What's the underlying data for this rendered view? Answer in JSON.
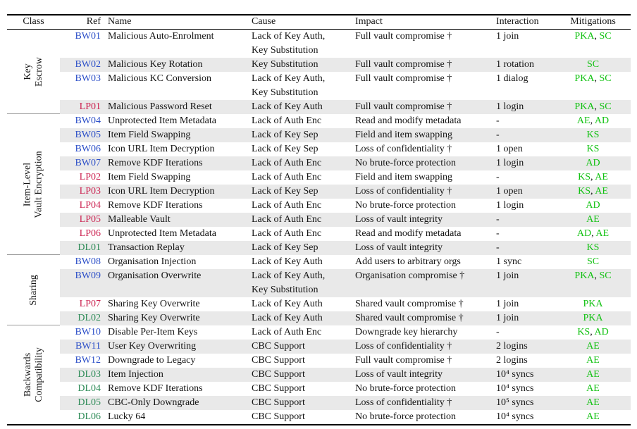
{
  "table": {
    "columns": [
      "Class",
      "Ref",
      "Name",
      "Cause",
      "Impact",
      "Interaction",
      "Mitigations"
    ],
    "ref_colors": {
      "BW": "#2d50c8",
      "LP": "#cc2452",
      "DL": "#2e8b57"
    },
    "mitigation_color": "#12c212",
    "stripe_color": "#e9e9e9",
    "separator": ", ",
    "groups": [
      {
        "class_label": "Key Escrow",
        "class_label_lines": [
          "Key",
          "Escrow"
        ],
        "rows": [
          {
            "ref": "BW01",
            "name": "Malicious Auto-Enrolment",
            "cause": [
              "Lack of Key Auth,",
              "Key Substitution"
            ],
            "impact": "Full vault compromise †",
            "interaction": "1 join",
            "mitigations": [
              "PKA",
              "SC"
            ],
            "shaded": false
          },
          {
            "ref": "BW02",
            "name": "Malicious Key Rotation",
            "cause": [
              "Key Substitution"
            ],
            "impact": "Full vault compromise †",
            "interaction": "1 rotation",
            "mitigations": [
              "SC"
            ],
            "shaded": true
          },
          {
            "ref": "BW03",
            "name": "Malicious KC Conversion",
            "cause": [
              "Lack of Key Auth,",
              "Key Substitution"
            ],
            "impact": "Full vault compromise †",
            "interaction": "1 dialog",
            "mitigations": [
              "PKA",
              "SC"
            ],
            "shaded": false
          },
          {
            "ref": "LP01",
            "name": "Malicious Password Reset",
            "cause": [
              "Lack of Key Auth"
            ],
            "impact": "Full vault compromise †",
            "interaction": "1 login",
            "mitigations": [
              "PKA",
              "SC"
            ],
            "shaded": true
          }
        ]
      },
      {
        "class_label": "Item-Level Vault Encryption",
        "class_label_lines": [
          "Item-Level",
          "Vault Encryption"
        ],
        "rows": [
          {
            "ref": "BW04",
            "name": "Unprotected Item Metadata",
            "cause": [
              "Lack of Auth Enc"
            ],
            "impact": "Read and modify metadata",
            "interaction": "-",
            "mitigations": [
              "AE",
              "AD"
            ],
            "shaded": false
          },
          {
            "ref": "BW05",
            "name": "Item Field Swapping",
            "cause": [
              "Lack of Key Sep"
            ],
            "impact": "Field and item swapping",
            "interaction": "-",
            "mitigations": [
              "KS"
            ],
            "shaded": true
          },
          {
            "ref": "BW06",
            "name": "Icon URL Item Decryption",
            "cause": [
              "Lack of Key Sep"
            ],
            "impact": "Loss of confidentiality †",
            "interaction": "1 open",
            "mitigations": [
              "KS"
            ],
            "shaded": false
          },
          {
            "ref": "BW07",
            "name": "Remove KDF Iterations",
            "cause": [
              "Lack of Auth Enc"
            ],
            "impact": "No brute-force protection",
            "interaction": "1 login",
            "mitigations": [
              "AD"
            ],
            "shaded": true
          },
          {
            "ref": "LP02",
            "name": "Item Field Swapping",
            "cause": [
              "Lack of Auth Enc"
            ],
            "impact": "Field and item swapping",
            "interaction": "-",
            "mitigations": [
              "KS",
              "AE"
            ],
            "shaded": false
          },
          {
            "ref": "LP03",
            "name": "Icon URL Item Decryption",
            "cause": [
              "Lack of Key Sep"
            ],
            "impact": "Loss of confidentiality †",
            "interaction": "1 open",
            "mitigations": [
              "KS",
              "AE"
            ],
            "shaded": true
          },
          {
            "ref": "LP04",
            "name": "Remove KDF Iterations",
            "cause": [
              "Lack of Auth Enc"
            ],
            "impact": "No brute-force protection",
            "interaction": "1 login",
            "mitigations": [
              "AD"
            ],
            "shaded": false
          },
          {
            "ref": "LP05",
            "name": "Malleable Vault",
            "cause": [
              "Lack of Auth Enc"
            ],
            "impact": "Loss of vault integrity",
            "interaction": "-",
            "mitigations": [
              "AE"
            ],
            "shaded": true
          },
          {
            "ref": "LP06",
            "name": "Unprotected Item Metadata",
            "cause": [
              "Lack of Auth Enc"
            ],
            "impact": "Read and modify metadata",
            "interaction": "-",
            "mitigations": [
              "AD",
              "AE"
            ],
            "shaded": false
          },
          {
            "ref": "DL01",
            "name": "Transaction Replay",
            "cause": [
              "Lack of Key Sep"
            ],
            "impact": "Loss of vault integrity",
            "interaction": "-",
            "mitigations": [
              "KS"
            ],
            "shaded": true
          }
        ]
      },
      {
        "class_label": "Sharing",
        "class_label_lines": [
          "Sharing"
        ],
        "rows": [
          {
            "ref": "BW08",
            "name": "Organisation Injection",
            "cause": [
              "Lack of Key Auth"
            ],
            "impact": "Add users to arbitrary orgs",
            "interaction": "1 sync",
            "mitigations": [
              "SC"
            ],
            "shaded": false
          },
          {
            "ref": "BW09",
            "name": "Organisation Overwrite",
            "cause": [
              "Lack of Key Auth,",
              "Key Substitution"
            ],
            "impact": "Organisation compromise †",
            "interaction": "1 join",
            "mitigations": [
              "PKA",
              "SC"
            ],
            "shaded": true
          },
          {
            "ref": "LP07",
            "name": "Sharing Key Overwrite",
            "cause": [
              "Lack of Key Auth"
            ],
            "impact": "Shared vault compromise †",
            "interaction": "1 join",
            "mitigations": [
              "PKA"
            ],
            "shaded": false
          },
          {
            "ref": "DL02",
            "name": "Sharing Key Overwrite",
            "cause": [
              "Lack of Key Auth"
            ],
            "impact": "Shared vault compromise †",
            "interaction": "1 join",
            "mitigations": [
              "PKA"
            ],
            "shaded": true
          }
        ]
      },
      {
        "class_label": "Backwards Compatibility",
        "class_label_lines": [
          "Backwards",
          "Compatibility"
        ],
        "rows": [
          {
            "ref": "BW10",
            "name": "Disable Per-Item Keys",
            "cause": [
              "Lack of Auth Enc"
            ],
            "impact": "Downgrade key hierarchy",
            "interaction": "-",
            "mitigations": [
              "KS",
              "AD"
            ],
            "shaded": false
          },
          {
            "ref": "BW11",
            "name": "User Key Overwriting",
            "cause": [
              "CBC Support"
            ],
            "impact": "Loss of confidentiality †",
            "interaction": "2 logins",
            "mitigations": [
              "AE"
            ],
            "shaded": true
          },
          {
            "ref": "BW12",
            "name": "Downgrade to Legacy",
            "cause": [
              "CBC Support"
            ],
            "impact": "Full vault compromise †",
            "interaction": "2 logins",
            "mitigations": [
              "AE"
            ],
            "shaded": false
          },
          {
            "ref": "DL03",
            "name": "Item Injection",
            "cause": [
              "CBC Support"
            ],
            "impact": "Loss of vault integrity",
            "interaction": "10⁴ syncs",
            "mitigations": [
              "AE"
            ],
            "shaded": true
          },
          {
            "ref": "DL04",
            "name": "Remove KDF Iterations",
            "cause": [
              "CBC Support"
            ],
            "impact": "No brute-force protection",
            "interaction": "10⁴ syncs",
            "mitigations": [
              "AE"
            ],
            "shaded": false
          },
          {
            "ref": "DL05",
            "name": "CBC-Only Downgrade",
            "cause": [
              "CBC Support"
            ],
            "impact": "Loss of confidentiality †",
            "interaction": "10⁵ syncs",
            "mitigations": [
              "AE"
            ],
            "shaded": true
          },
          {
            "ref": "DL06",
            "name": "Lucky 64",
            "cause": [
              "CBC Support"
            ],
            "impact": "No brute-force protection",
            "interaction": "10⁴ syncs",
            "mitigations": [
              "AE"
            ],
            "shaded": false
          }
        ]
      }
    ]
  }
}
